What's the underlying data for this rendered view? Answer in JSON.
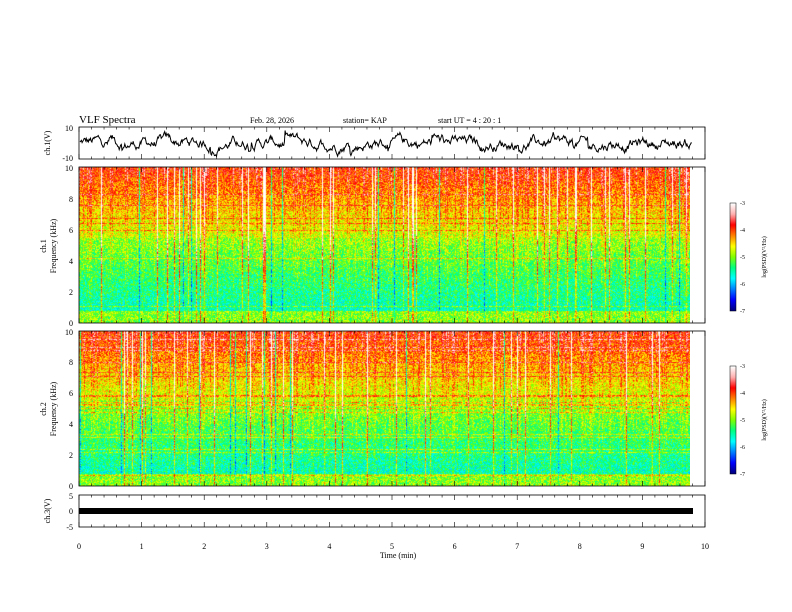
{
  "header": {
    "title": "VLF Spectra",
    "date": "Feb. 28, 2026",
    "station": "station= KAP",
    "start": "start  UT =  4 : 20 : 1"
  },
  "colors": {
    "ink": "#000000",
    "spectrogram_scale": [
      "#00007f",
      "#0000ff",
      "#0080ff",
      "#00ffff",
      "#00ff80",
      "#80ff00",
      "#ffff00",
      "#ff8000",
      "#ff0000",
      "#ffb0b0",
      "#ffffff"
    ]
  },
  "chart_data": [
    {
      "type": "line",
      "name": "ch1-waveform",
      "ylabel": "ch.1(V)",
      "ylim": [
        -10,
        10
      ],
      "yticks": [
        "10",
        "-10"
      ],
      "xlim": [
        0,
        10
      ],
      "data_end_min": 9.8
    },
    {
      "type": "heatmap",
      "name": "ch1-spectrogram",
      "ylabel_top": "ch.1",
      "ylabel": "Frequency (kHz)",
      "ylim": [
        0,
        10
      ],
      "yticks": [
        "0",
        "2",
        "4",
        "6",
        "8",
        "10"
      ],
      "xlim": [
        0,
        10
      ],
      "colorbar": {
        "label": "log(PSD)(V²/Hz)",
        "ticks": [
          "-3",
          "-4",
          "-5",
          "-6",
          "-7"
        ],
        "range": [
          -7,
          -3
        ]
      }
    },
    {
      "type": "heatmap",
      "name": "ch2-spectrogram",
      "ylabel_top": "ch.2",
      "ylabel": "Frequency (kHz)",
      "ylim": [
        0,
        10
      ],
      "yticks": [
        "0",
        "2",
        "4",
        "6",
        "8",
        "10"
      ],
      "xlim": [
        0,
        10
      ],
      "colorbar": {
        "label": "log(PSD)(V²/Hz)",
        "ticks": [
          "-3",
          "-4",
          "-5",
          "-6",
          "-7"
        ],
        "range": [
          -7,
          -3
        ]
      }
    },
    {
      "type": "line",
      "name": "ch3-waveform",
      "ylabel": "ch.3(V)",
      "ylim": [
        -5,
        5
      ],
      "yticks": [
        "5",
        "0",
        "-5"
      ],
      "xlim": [
        0,
        10
      ],
      "value_v": 0,
      "data_end_min": 9.8
    }
  ],
  "xaxis": {
    "label": "Time (min)",
    "ticks": [
      "0",
      "1",
      "2",
      "3",
      "4",
      "5",
      "6",
      "7",
      "8",
      "9",
      "10"
    ]
  }
}
